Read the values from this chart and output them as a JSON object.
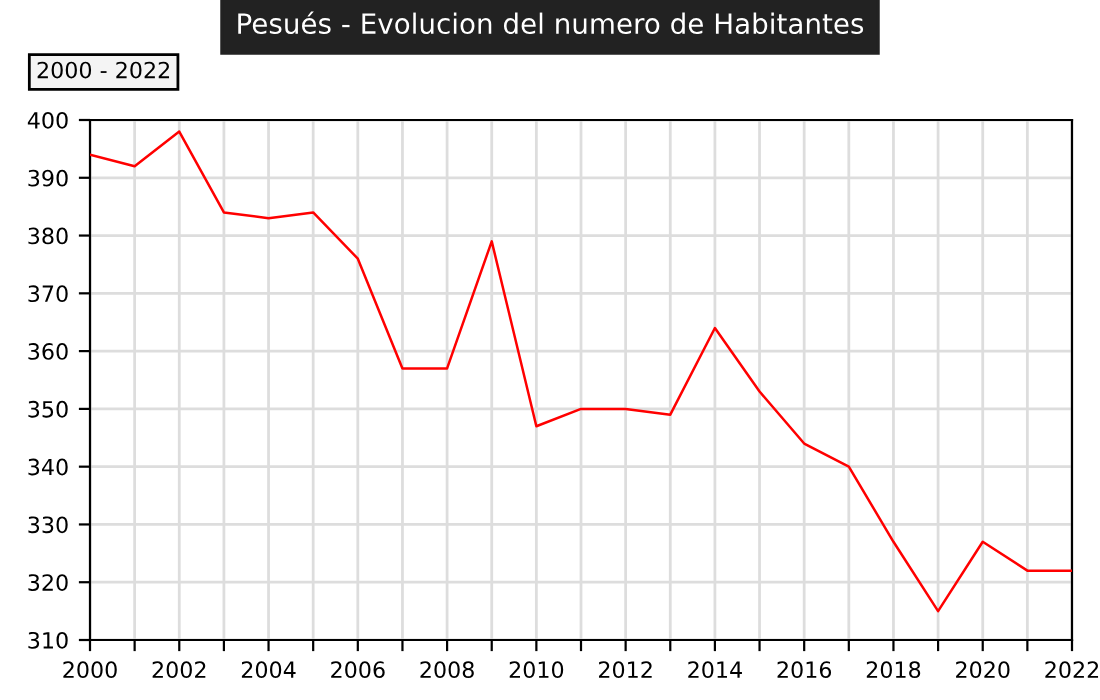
{
  "chart_data": {
    "type": "line",
    "title": "Pesués - Evolucion del numero de Habitantes",
    "annotations": [
      "2000 - 2022"
    ],
    "x": [
      2000,
      2001,
      2002,
      2003,
      2004,
      2005,
      2006,
      2007,
      2008,
      2009,
      2010,
      2011,
      2012,
      2013,
      2014,
      2015,
      2016,
      2017,
      2018,
      2019,
      2020,
      2021,
      2022
    ],
    "series": [
      {
        "color": "#ff0000",
        "values": [
          394,
          392,
          398,
          384,
          383,
          384,
          376,
          357,
          357,
          379,
          347,
          350,
          350,
          349,
          364,
          353,
          344,
          340,
          327,
          315,
          327,
          322,
          322
        ]
      }
    ],
    "xlim": [
      2000,
      2022
    ],
    "xticks": [
      2000,
      {
        "value": 2001,
        "label": null
      },
      2002,
      {
        "value": 2003,
        "label": null
      },
      2004,
      {
        "value": 2005,
        "label": null
      },
      2006,
      {
        "value": 2007,
        "label": null
      },
      2008,
      {
        "value": 2009,
        "label": null
      },
      2010,
      {
        "value": 2011,
        "label": null
      },
      2012,
      {
        "value": 2013,
        "label": null
      },
      2014,
      {
        "value": 2015,
        "label": null
      },
      2016,
      {
        "value": 2017,
        "label": null
      },
      2018,
      {
        "value": 2019,
        "label": null
      },
      2020,
      {
        "value": 2021,
        "label": null
      },
      2022
    ],
    "ylim": [
      310,
      400
    ],
    "yticks": [
      310,
      320,
      330,
      340,
      350,
      360,
      370,
      380,
      390,
      400
    ],
    "grid": true,
    "marker": "none",
    "line_style": "solid"
  }
}
